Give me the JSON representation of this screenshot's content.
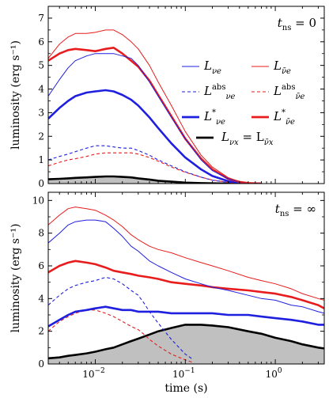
{
  "chart_data": [
    {
      "type": "line",
      "panel_label": "t_ns = 0",
      "panel_label_parts": {
        "main": "t",
        "sub": "ns",
        "rest": " = 0"
      },
      "ylabel": "luminosity (erg s⁻¹)",
      "xlabel": "",
      "x_scale": "log",
      "xlim": [
        0.003,
        3.5
      ],
      "ylim": [
        0,
        7.5
      ],
      "yticks": [
        "0",
        "1",
        "2",
        "3",
        "4",
        "5",
        "6",
        "7"
      ],
      "grid": false,
      "legend_position": "right",
      "legend": [
        {
          "key": "Lnue",
          "text": "L",
          "sub": "νe",
          "sup": ""
        },
        {
          "key": "Lanue",
          "text": "L",
          "sub": "ν̄e",
          "sup": ""
        },
        {
          "key": "Lnue_abs",
          "text": "L",
          "sub": "νe",
          "sup": "abs"
        },
        {
          "key": "Lanue_abs",
          "text": "L",
          "sub": "ν̄e",
          "sup": "abs"
        },
        {
          "key": "Lnue_star",
          "text": "L",
          "sub": "νe",
          "sup": "*"
        },
        {
          "key": "Lanue_star",
          "text": "L",
          "sub": "ν̄e",
          "sup": "*"
        },
        {
          "key": "Lnux",
          "text": "L",
          "sub": "νx",
          "sup": "",
          "text2": " = L",
          "sub2": "ν̄x"
        }
      ],
      "series": [
        {
          "key": "Lnue",
          "color": "#1f1fe0",
          "style": "thin",
          "x": [
            0.003,
            0.004,
            0.005,
            0.006,
            0.008,
            0.01,
            0.013,
            0.016,
            0.02,
            0.025,
            0.03,
            0.04,
            0.05,
            0.07,
            0.1,
            0.15,
            0.2,
            0.3,
            0.4,
            0.5,
            0.7
          ],
          "y": [
            3.7,
            4.4,
            4.9,
            5.2,
            5.4,
            5.5,
            5.5,
            5.5,
            5.4,
            5.3,
            5.0,
            4.3,
            3.7,
            2.8,
            1.9,
            1.0,
            0.55,
            0.2,
            0.07,
            0.02,
            0.0
          ]
        },
        {
          "key": "Lanue",
          "color": "#e81c1c",
          "style": "thin",
          "x": [
            0.003,
            0.004,
            0.005,
            0.006,
            0.008,
            0.01,
            0.013,
            0.016,
            0.02,
            0.025,
            0.03,
            0.04,
            0.05,
            0.07,
            0.1,
            0.15,
            0.2,
            0.3,
            0.4,
            0.5,
            0.7
          ],
          "y": [
            5.3,
            5.9,
            6.2,
            6.35,
            6.35,
            6.4,
            6.5,
            6.5,
            6.3,
            6.0,
            5.7,
            5.0,
            4.3,
            3.3,
            2.2,
            1.2,
            0.7,
            0.25,
            0.08,
            0.02,
            0.0
          ]
        },
        {
          "key": "Lnue_abs",
          "color": "#1f1fe0",
          "style": "dashed",
          "x": [
            0.003,
            0.004,
            0.005,
            0.006,
            0.008,
            0.01,
            0.013,
            0.016,
            0.02,
            0.025,
            0.03,
            0.04,
            0.05,
            0.07,
            0.1,
            0.15,
            0.2,
            0.3,
            0.4,
            0.5,
            0.7
          ],
          "y": [
            1.0,
            1.15,
            1.25,
            1.35,
            1.5,
            1.6,
            1.6,
            1.55,
            1.5,
            1.5,
            1.4,
            1.2,
            1.0,
            0.75,
            0.5,
            0.27,
            0.14,
            0.05,
            0.02,
            0.0,
            0.0
          ]
        },
        {
          "key": "Lanue_abs",
          "color": "#e81c1c",
          "style": "dashed",
          "x": [
            0.003,
            0.004,
            0.005,
            0.006,
            0.008,
            0.01,
            0.013,
            0.016,
            0.02,
            0.025,
            0.03,
            0.04,
            0.05,
            0.07,
            0.1,
            0.15,
            0.2,
            0.3,
            0.4,
            0.5,
            0.7
          ],
          "y": [
            0.75,
            0.9,
            1.0,
            1.05,
            1.15,
            1.25,
            1.3,
            1.3,
            1.3,
            1.3,
            1.25,
            1.1,
            0.95,
            0.7,
            0.48,
            0.27,
            0.15,
            0.05,
            0.02,
            0.0,
            0.0
          ]
        },
        {
          "key": "Lnue_star",
          "color": "#1f1fe0",
          "style": "thick",
          "x": [
            0.003,
            0.004,
            0.005,
            0.006,
            0.008,
            0.01,
            0.013,
            0.016,
            0.02,
            0.025,
            0.03,
            0.04,
            0.05,
            0.07,
            0.1,
            0.15,
            0.2,
            0.3,
            0.4,
            0.5,
            0.7
          ],
          "y": [
            2.75,
            3.2,
            3.5,
            3.7,
            3.85,
            3.9,
            3.95,
            3.9,
            3.75,
            3.55,
            3.3,
            2.8,
            2.35,
            1.7,
            1.1,
            0.6,
            0.32,
            0.1,
            0.03,
            0.01,
            0.0
          ]
        },
        {
          "key": "Lanue_star",
          "color": "#e81c1c",
          "style": "thick",
          "x": [
            0.003,
            0.004,
            0.005,
            0.006,
            0.008,
            0.01,
            0.013,
            0.016,
            0.02,
            0.025,
            0.03,
            0.04,
            0.05,
            0.07,
            0.1,
            0.15,
            0.2,
            0.3,
            0.4,
            0.5,
            0.7
          ],
          "y": [
            5.2,
            5.5,
            5.65,
            5.7,
            5.65,
            5.6,
            5.7,
            5.75,
            5.5,
            5.2,
            4.95,
            4.35,
            3.75,
            2.85,
            1.9,
            1.05,
            0.6,
            0.2,
            0.07,
            0.02,
            0.0
          ]
        },
        {
          "key": "Lnux",
          "color": "#000000",
          "style": "thick",
          "fill": "#c0c0c0",
          "x": [
            0.003,
            0.004,
            0.005,
            0.006,
            0.008,
            0.01,
            0.013,
            0.016,
            0.02,
            0.025,
            0.03,
            0.04,
            0.05,
            0.07,
            0.1,
            0.15,
            0.2,
            0.3,
            0.4
          ],
          "y": [
            0.18,
            0.2,
            0.22,
            0.24,
            0.26,
            0.28,
            0.3,
            0.3,
            0.28,
            0.26,
            0.22,
            0.17,
            0.12,
            0.08,
            0.04,
            0.02,
            0.01,
            0.0,
            0.0
          ]
        }
      ]
    },
    {
      "type": "line",
      "panel_label": "t_ns = ∞",
      "panel_label_parts": {
        "main": "t",
        "sub": "ns",
        "rest": " = ∞"
      },
      "ylabel": "luminosity (erg s⁻¹)",
      "xlabel": "time (s)",
      "x_scale": "log",
      "xlim": [
        0.003,
        3.5
      ],
      "ylim": [
        0,
        10.5
      ],
      "yticks": [
        "0",
        "2",
        "4",
        "6",
        "8",
        "10"
      ],
      "xticks": [
        {
          "value": 0.01,
          "base": "10",
          "exp": "−2"
        },
        {
          "value": 0.1,
          "base": "10",
          "exp": "−1"
        },
        {
          "value": 1,
          "base": "10",
          "exp": "0"
        }
      ],
      "grid": false,
      "series": [
        {
          "key": "Lnue",
          "color": "#1f1fe0",
          "style": "thin",
          "x": [
            0.003,
            0.004,
            0.005,
            0.006,
            0.008,
            0.01,
            0.013,
            0.016,
            0.02,
            0.025,
            0.03,
            0.04,
            0.05,
            0.07,
            0.1,
            0.15,
            0.2,
            0.3,
            0.5,
            0.7,
            1.0,
            1.5,
            2.0,
            3.0,
            3.5
          ],
          "y": [
            7.4,
            8.0,
            8.5,
            8.7,
            8.8,
            8.8,
            8.7,
            8.3,
            7.8,
            7.2,
            6.9,
            6.3,
            6.0,
            5.6,
            5.2,
            4.9,
            4.7,
            4.5,
            4.2,
            4.0,
            3.9,
            3.6,
            3.5,
            3.2,
            3.1
          ]
        },
        {
          "key": "Lanue",
          "color": "#e81c1c",
          "style": "thin",
          "x": [
            0.003,
            0.004,
            0.005,
            0.006,
            0.008,
            0.01,
            0.013,
            0.016,
            0.02,
            0.025,
            0.03,
            0.04,
            0.05,
            0.07,
            0.1,
            0.15,
            0.2,
            0.3,
            0.5,
            0.7,
            1.0,
            1.5,
            2.0,
            3.0,
            3.5
          ],
          "y": [
            8.5,
            9.1,
            9.5,
            9.6,
            9.5,
            9.4,
            9.1,
            8.8,
            8.4,
            7.9,
            7.6,
            7.2,
            7.0,
            6.8,
            6.5,
            6.2,
            6.0,
            5.7,
            5.3,
            5.1,
            4.9,
            4.6,
            4.3,
            4.0,
            3.9
          ]
        },
        {
          "key": "Lnue_abs",
          "color": "#1f1fe0",
          "style": "dashed",
          "x": [
            0.003,
            0.004,
            0.005,
            0.006,
            0.008,
            0.01,
            0.013,
            0.016,
            0.02,
            0.025,
            0.03,
            0.035,
            0.04,
            0.05,
            0.07,
            0.1,
            0.12
          ],
          "y": [
            3.6,
            4.2,
            4.6,
            4.8,
            5.0,
            5.1,
            5.3,
            5.2,
            4.9,
            4.5,
            4.2,
            3.7,
            3.2,
            2.5,
            1.5,
            0.6,
            0.3
          ]
        },
        {
          "key": "Lanue_abs",
          "color": "#e81c1c",
          "style": "dashed",
          "x": [
            0.003,
            0.004,
            0.005,
            0.006,
            0.008,
            0.01,
            0.013,
            0.016,
            0.02,
            0.025,
            0.03,
            0.035,
            0.04,
            0.05,
            0.07,
            0.1,
            0.12
          ],
          "y": [
            2.0,
            2.6,
            2.9,
            3.1,
            3.3,
            3.3,
            3.1,
            2.9,
            2.6,
            2.3,
            2.1,
            1.8,
            1.5,
            1.1,
            0.6,
            0.25,
            0.1
          ]
        },
        {
          "key": "Lnue_star",
          "color": "#1f1fe0",
          "style": "thick",
          "x": [
            0.003,
            0.004,
            0.005,
            0.006,
            0.008,
            0.01,
            0.013,
            0.016,
            0.02,
            0.025,
            0.03,
            0.04,
            0.05,
            0.07,
            0.1,
            0.15,
            0.2,
            0.3,
            0.5,
            0.7,
            1.0,
            1.5,
            2.0,
            3.0,
            3.5
          ],
          "y": [
            2.3,
            2.7,
            3.0,
            3.2,
            3.3,
            3.4,
            3.5,
            3.4,
            3.3,
            3.3,
            3.2,
            3.2,
            3.2,
            3.1,
            3.1,
            3.1,
            3.1,
            3.0,
            3.0,
            2.9,
            2.8,
            2.7,
            2.6,
            2.4,
            2.4
          ]
        },
        {
          "key": "Lanue_star",
          "color": "#e81c1c",
          "style": "thick",
          "x": [
            0.003,
            0.004,
            0.005,
            0.006,
            0.008,
            0.01,
            0.013,
            0.016,
            0.02,
            0.025,
            0.03,
            0.04,
            0.05,
            0.07,
            0.1,
            0.15,
            0.2,
            0.3,
            0.5,
            0.7,
            1.0,
            1.5,
            2.0,
            3.0,
            3.5
          ],
          "y": [
            5.6,
            6.0,
            6.2,
            6.3,
            6.2,
            6.1,
            5.9,
            5.7,
            5.6,
            5.5,
            5.4,
            5.3,
            5.2,
            5.0,
            4.9,
            4.8,
            4.7,
            4.6,
            4.5,
            4.4,
            4.3,
            4.1,
            3.9,
            3.6,
            3.4
          ]
        },
        {
          "key": "Lnux",
          "color": "#000000",
          "style": "thick",
          "fill": "#c0c0c0",
          "x": [
            0.003,
            0.004,
            0.005,
            0.006,
            0.008,
            0.01,
            0.013,
            0.016,
            0.02,
            0.025,
            0.03,
            0.04,
            0.05,
            0.07,
            0.1,
            0.15,
            0.2,
            0.3,
            0.5,
            0.7,
            1.0,
            1.5,
            2.0,
            3.0,
            3.5
          ],
          "y": [
            0.35,
            0.4,
            0.5,
            0.55,
            0.65,
            0.75,
            0.9,
            1.0,
            1.2,
            1.4,
            1.55,
            1.8,
            2.0,
            2.2,
            2.4,
            2.4,
            2.35,
            2.25,
            2.0,
            1.85,
            1.6,
            1.4,
            1.2,
            1.0,
            0.95
          ]
        }
      ]
    }
  ]
}
